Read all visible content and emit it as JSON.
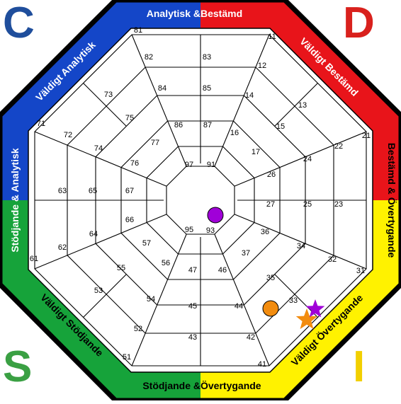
{
  "corners": {
    "c": {
      "text": "C",
      "color": "#1f4e9c"
    },
    "d": {
      "text": "D",
      "color": "#d9211d"
    },
    "s": {
      "text": "S",
      "color": "#3aa043"
    },
    "i": {
      "text": "I",
      "color": "#f2cf00"
    }
  },
  "colors": {
    "blue": "#1446c8",
    "red": "#e8141a",
    "green": "#16a33a",
    "yellow": "#fff200",
    "outline": "#000000",
    "web_line": "#000000"
  },
  "edge_labels": {
    "top_blue": "Analytisk & ",
    "top_red": "Bestämd",
    "top_right": "Väldigt Bestämd",
    "right": "Bestämd & Övertygande",
    "bottom_right": "Väldigt Övertygande",
    "bottom_green": "Stödjande & ",
    "bottom_yellow": "Övertygande",
    "bottom_left": "Väldigt Stödjande",
    "left": "Stödjande & Analytisk",
    "top_left": "Väldigt Analytisk"
  },
  "cell_numbers": {
    "n81": "81",
    "n82": "82",
    "n83": "83",
    "n84": "84",
    "n85": "85",
    "n86": "86",
    "n87": "87",
    "n11": "11",
    "n12": "12",
    "n13": "13",
    "n14": "14",
    "n15": "15",
    "n16": "16",
    "n17": "17",
    "n71": "71",
    "n72": "72",
    "n73": "73",
    "n74": "74",
    "n75": "75",
    "n76": "76",
    "n77": "77",
    "n21": "21",
    "n22": "22",
    "n23": "23",
    "n24": "24",
    "n25": "25",
    "n26": "26",
    "n27": "27",
    "n61": "61",
    "n62": "62",
    "n63": "63",
    "n64": "64",
    "n65": "65",
    "n66": "66",
    "n67": "67",
    "n31": "31",
    "n32": "32",
    "n33": "33",
    "n34": "34",
    "n35": "35",
    "n36": "36",
    "n37": "37",
    "n51": "51",
    "n52": "52",
    "n53": "53",
    "n54": "54",
    "n55": "55",
    "n56": "56",
    "n57": "57",
    "n41": "41",
    "n42": "42",
    "n43": "43",
    "n44": "44",
    "n45": "45",
    "n46": "46",
    "n47": "47",
    "n91": "91",
    "n93": "93",
    "n95": "95",
    "n97": "97"
  },
  "markers": {
    "purple_circle": {
      "color": "#a000d8"
    },
    "orange_circle": {
      "color": "#f28c0f"
    },
    "purple_star": {
      "color": "#a000d8"
    },
    "orange_star": {
      "color": "#f28c0f"
    }
  }
}
